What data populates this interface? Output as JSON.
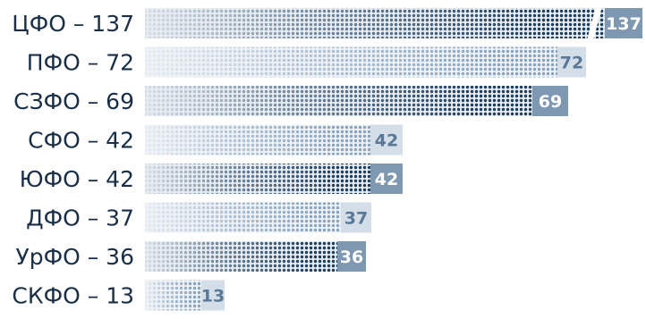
{
  "chart_data": {
    "type": "bar",
    "orientation": "horizontal",
    "categories": [
      "ЦФО",
      "ПФО",
      "СЗФО",
      "СФО",
      "ЮФО",
      "ДФО",
      "УрФО",
      "СКФО"
    ],
    "category_labels": [
      "ЦФО  – 137",
      "ПФО  – 72",
      "СЗФО  – 69",
      "СФО  – 42",
      "ЮФО  – 42",
      "ДФО  – 37",
      "УрФО  – 36",
      "СКФО  – 13"
    ],
    "values": [
      137,
      72,
      69,
      42,
      42,
      37,
      36,
      13
    ],
    "value_labels": [
      "137",
      "72",
      "69",
      "42",
      "42",
      "37",
      "36",
      "13"
    ],
    "axis_break_on_first_bar": true,
    "colors": {
      "dark": "#1f3d5c",
      "medium": "#7f98b2",
      "light": "#d4dee8",
      "label_text": "#1a2f47"
    },
    "bar_styles": [
      "dark",
      "light",
      "dark",
      "light",
      "dark",
      "light",
      "dark",
      "light"
    ]
  }
}
